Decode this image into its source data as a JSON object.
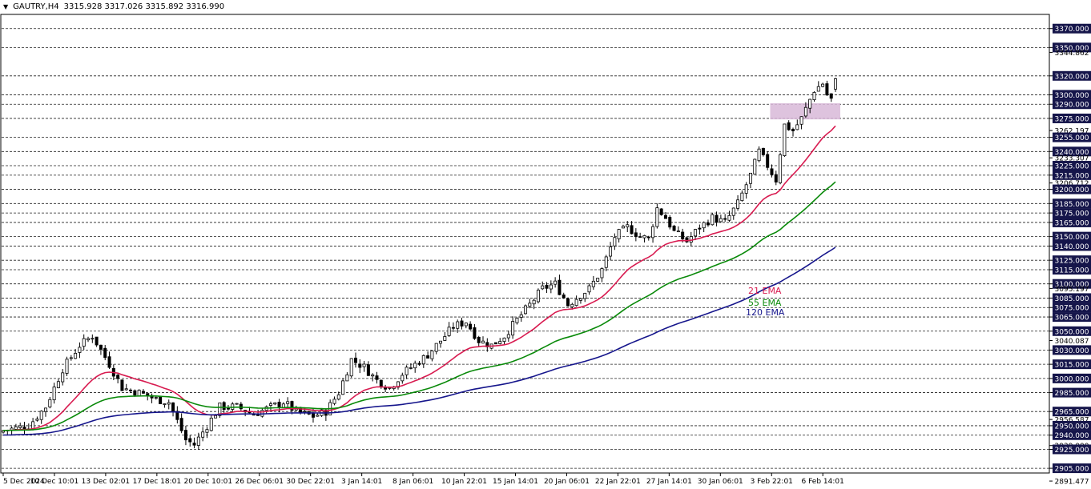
{
  "header": {
    "symbol": "GAUTRY,H4",
    "ohlc": "3315.928 3317.026 3315.892 3316.990"
  },
  "colors": {
    "ema21": "#d81b50",
    "ema55": "#0a8a0a",
    "ema120": "#16168c",
    "zone": "#d8b8d8",
    "price_label_bg": "#15154a"
  },
  "legend": [
    {
      "label": "21 EMA",
      "color": "#d81b50"
    },
    {
      "label": "55 EMA",
      "color": "#0a8a0a"
    },
    {
      "label": "120 EMA",
      "color": "#16168c"
    }
  ],
  "chart_data": {
    "type": "candlestick",
    "ylim": [
      2900,
      3385
    ],
    "x_tick_labels": [
      "5 Dec 2024",
      "10 Dec 10:01",
      "13 Dec 02:01",
      "17 Dec 18:01",
      "20 Dec 10:01",
      "26 Dec 06:01",
      "30 Dec 22:01",
      "3 Jan 14:01",
      "8 Jan 06:01",
      "10 Jan 22:01",
      "15 Jan 14:01",
      "20 Jan 06:01",
      "22 Jan 22:01",
      "27 Jan 14:01",
      "30 Jan 06:01",
      "3 Feb 22:01",
      "6 Feb 14:01"
    ],
    "levels": [
      3370,
      3350,
      3320,
      3300,
      3290,
      3275,
      3255,
      3240,
      3225,
      3215,
      3200,
      3185,
      3175,
      3165,
      3150,
      3140,
      3125,
      3115,
      3100,
      3085,
      3075,
      3065,
      3050,
      3030,
      3015,
      3000,
      2985,
      2965,
      2950,
      2940,
      2925,
      2905
    ],
    "y_labels": [
      "3370.000",
      "3350.000",
      "3344.862",
      "3320.000",
      "3300.000",
      "3290.000",
      "3275.000",
      "3262.197",
      "3255.000",
      "3240.000",
      "3233.307",
      "3225.000",
      "3215.000",
      "3206.712",
      "3200.000",
      "3185.000",
      "3175.000",
      "3165.000",
      "3150.000",
      "3140.000",
      "3125.000",
      "3115.000",
      "3100.000",
      "3095.197",
      "3085.000",
      "3075.000",
      "3065.000",
      "3050.000",
      "3040.087",
      "3030.000",
      "3015.000",
      "3000.000",
      "2985.000",
      "2965.000",
      "2956.587",
      "2950.000",
      "2940.000",
      "2929.000",
      "2925.000",
      "2905.000",
      "2891.477"
    ],
    "boxed_labels": [
      "3370.000",
      "3350.000",
      "3320.000",
      "3300.000",
      "3290.000",
      "3275.000",
      "3255.000",
      "3240.000",
      "3225.000",
      "3215.000",
      "3200.000",
      "3185.000",
      "3175.000",
      "3165.000",
      "3150.000",
      "3140.000",
      "3125.000",
      "3115.000",
      "3100.000",
      "3085.000",
      "3075.000",
      "3065.000",
      "3050.000",
      "3030.000",
      "3015.000",
      "3000.000",
      "2985.000",
      "2965.000",
      "2950.000",
      "2940.000",
      "2925.000",
      "2905.000"
    ],
    "zone": {
      "from_index": 181,
      "to_index": 196,
      "low": 3274,
      "high": 3291
    },
    "candle_count": 197,
    "anchors": [
      [
        0,
        2945
      ],
      [
        6,
        2950
      ],
      [
        10,
        2970
      ],
      [
        14,
        3010
      ],
      [
        18,
        3035
      ],
      [
        21,
        3045
      ],
      [
        23,
        3030
      ],
      [
        25,
        3015
      ],
      [
        28,
        2990
      ],
      [
        32,
        2985
      ],
      [
        36,
        2978
      ],
      [
        39,
        2975
      ],
      [
        41,
        2955
      ],
      [
        43,
        2935
      ],
      [
        45,
        2930
      ],
      [
        48,
        2950
      ],
      [
        51,
        2970
      ],
      [
        55,
        2970
      ],
      [
        59,
        2962
      ],
      [
        62,
        2968
      ],
      [
        66,
        2975
      ],
      [
        69,
        2965
      ],
      [
        73,
        2960
      ],
      [
        76,
        2965
      ],
      [
        79,
        2985
      ],
      [
        82,
        3020
      ],
      [
        85,
        3012
      ],
      [
        88,
        2998
      ],
      [
        91,
        2990
      ],
      [
        94,
        3005
      ],
      [
        97,
        3015
      ],
      [
        100,
        3025
      ],
      [
        103,
        3040
      ],
      [
        106,
        3055
      ],
      [
        109,
        3060
      ],
      [
        112,
        3040
      ],
      [
        115,
        3035
      ],
      [
        118,
        3045
      ],
      [
        121,
        3062
      ],
      [
        124,
        3078
      ],
      [
        127,
        3095
      ],
      [
        130,
        3100
      ],
      [
        133,
        3078
      ],
      [
        135,
        3085
      ],
      [
        138,
        3095
      ],
      [
        141,
        3115
      ],
      [
        144,
        3150
      ],
      [
        147,
        3160
      ],
      [
        150,
        3150
      ],
      [
        152,
        3148
      ],
      [
        154,
        3180
      ],
      [
        156,
        3170
      ],
      [
        158,
        3155
      ],
      [
        161,
        3145
      ],
      [
        164,
        3160
      ],
      [
        167,
        3170
      ],
      [
        170,
        3165
      ],
      [
        173,
        3185
      ],
      [
        176,
        3215
      ],
      [
        178,
        3240
      ],
      [
        180,
        3225
      ],
      [
        182,
        3210
      ],
      [
        184,
        3268
      ],
      [
        186,
        3262
      ],
      [
        188,
        3275
      ],
      [
        191,
        3305
      ],
      [
        193,
        3312
      ],
      [
        194,
        3300
      ],
      [
        195,
        3295
      ],
      [
        196,
        3317
      ]
    ],
    "ema": [
      {
        "period": 21,
        "name": "21 EMA",
        "color": "#d81b50"
      },
      {
        "period": 55,
        "name": "55 EMA",
        "color": "#0a8a0a"
      },
      {
        "period": 120,
        "name": "120 EMA",
        "color": "#16168c"
      }
    ],
    "ema_seed": {
      "21": 2945,
      "55": 2945,
      "120": 2940
    }
  }
}
